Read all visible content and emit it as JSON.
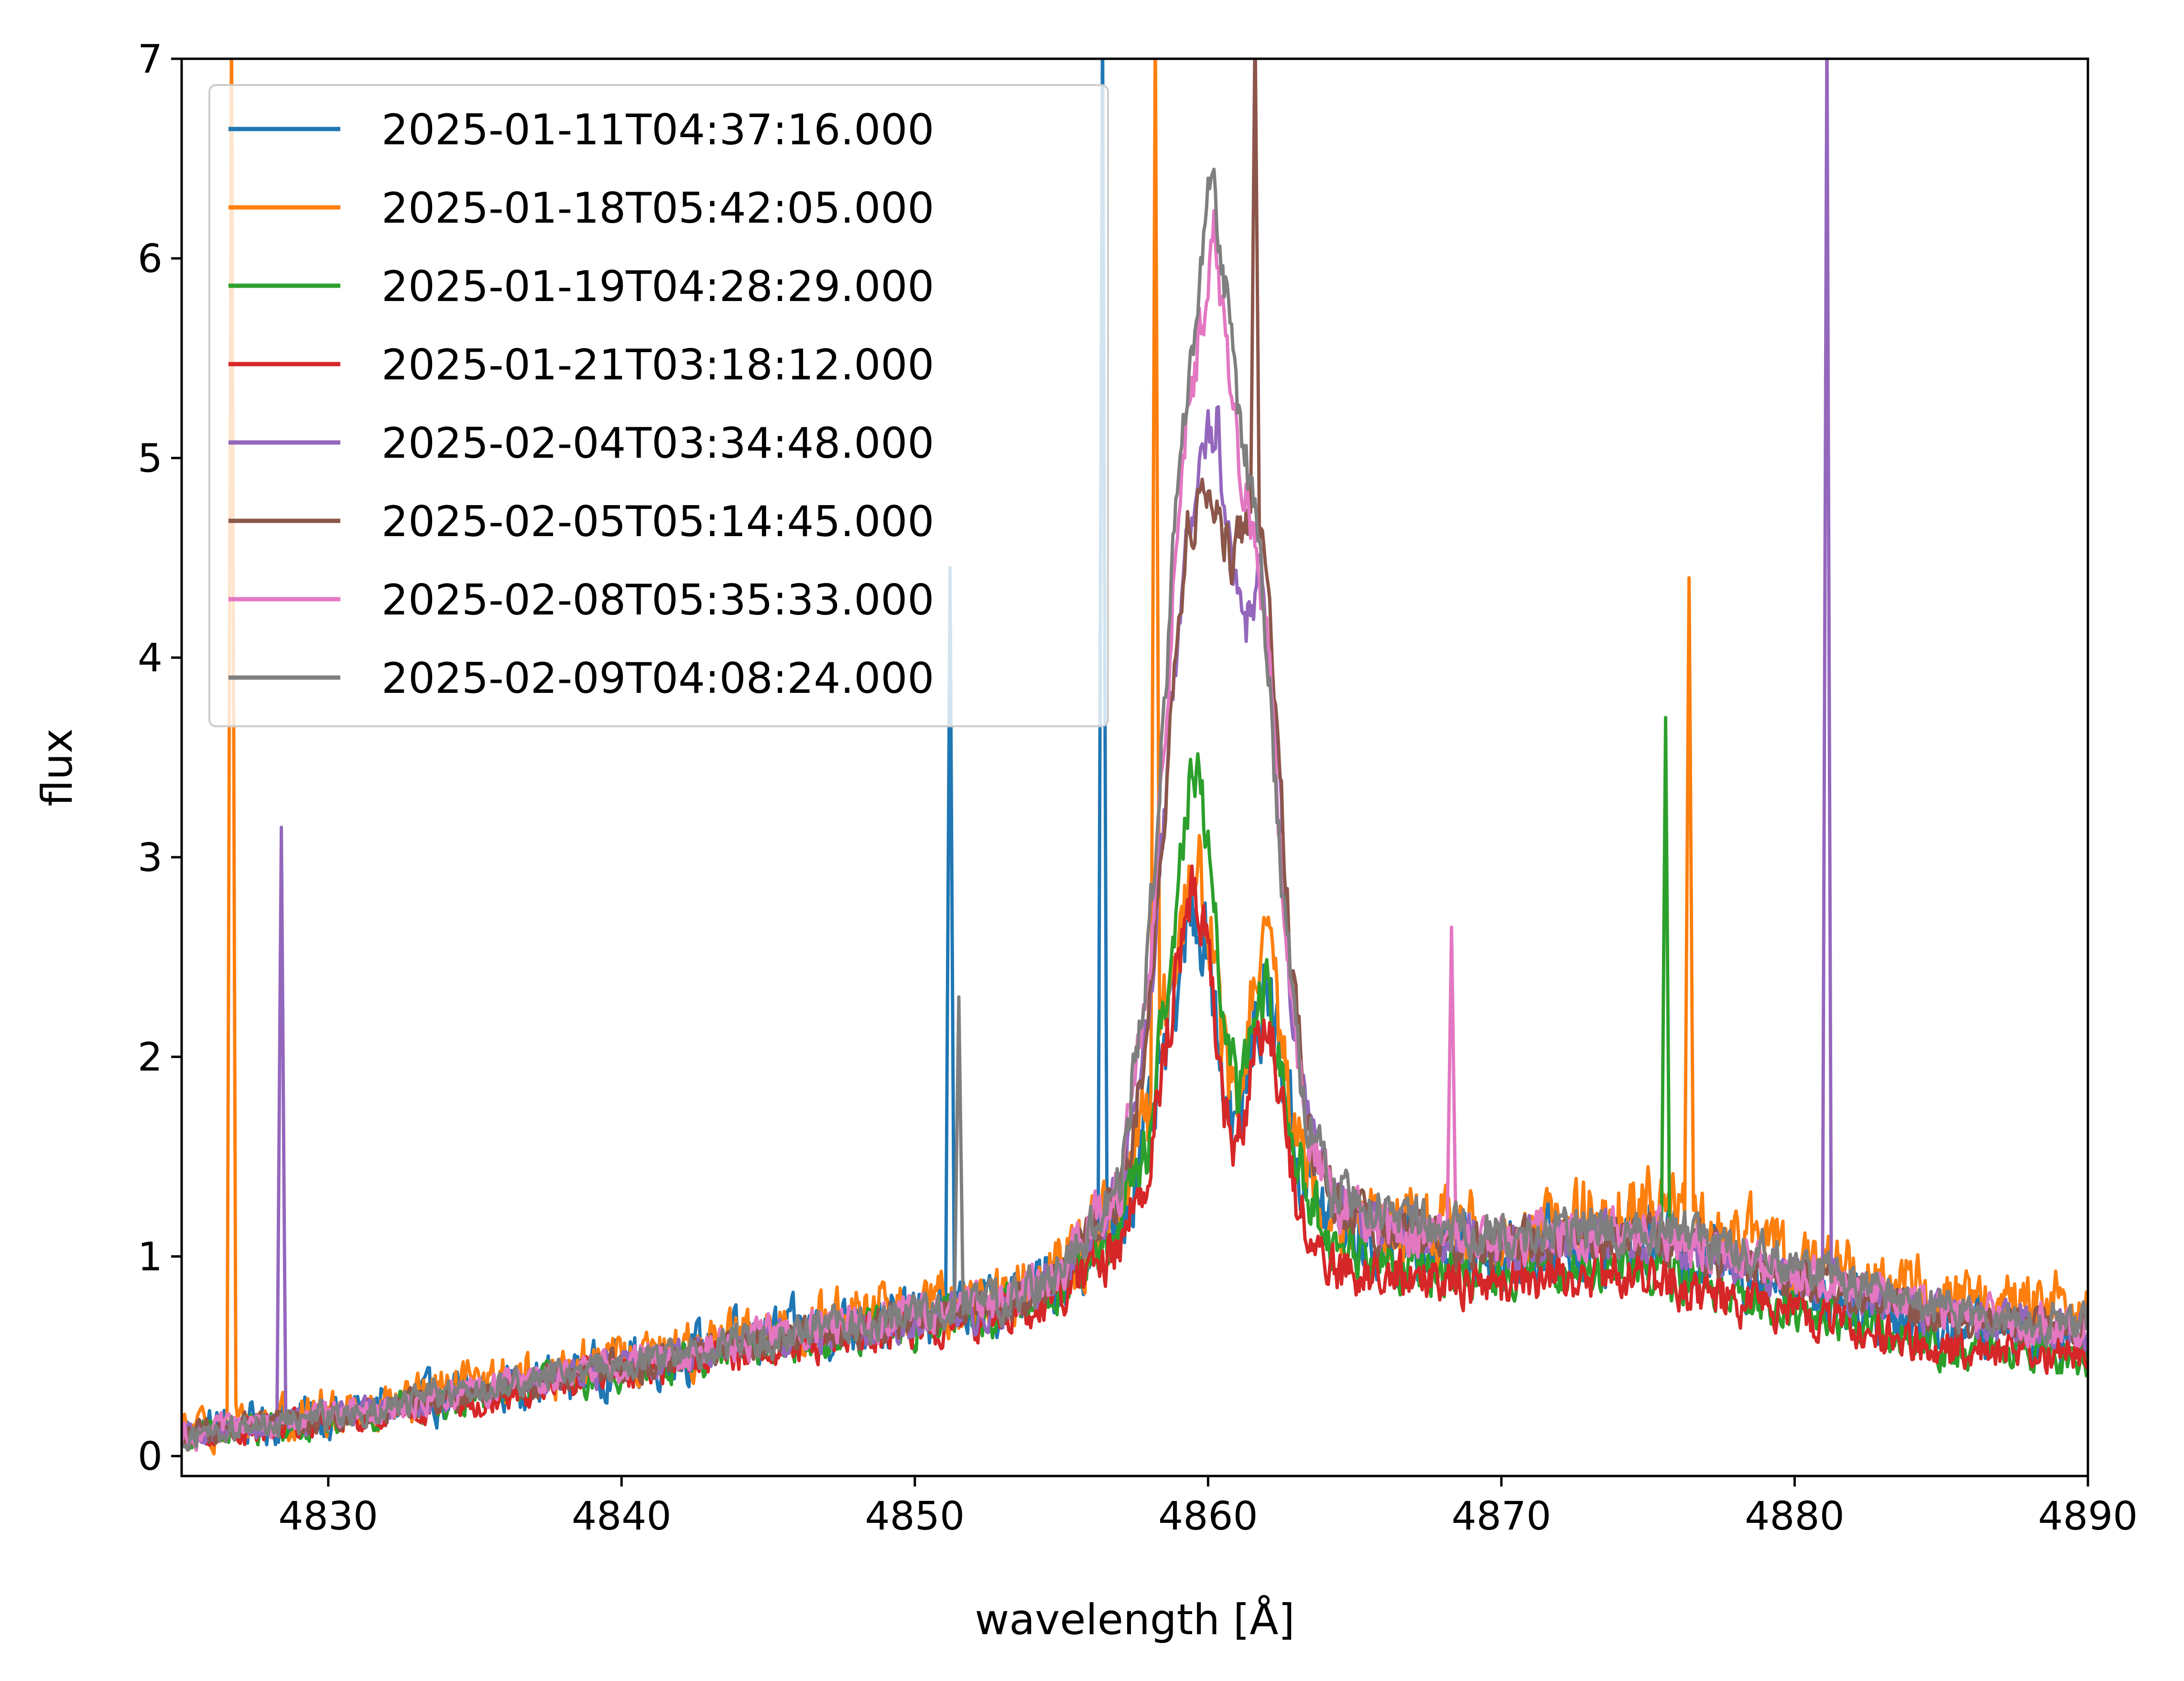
{
  "chart_data": {
    "type": "line",
    "title": "",
    "xlabel": "wavelength [Å]",
    "ylabel": "flux",
    "xlim": [
      4825,
      4890
    ],
    "ylim": [
      -0.1,
      7
    ],
    "xticks": [
      4830,
      4840,
      4850,
      4860,
      4870,
      4880,
      4890
    ],
    "yticks": [
      0,
      1,
      2,
      3,
      4,
      5,
      6,
      7
    ],
    "grid": false,
    "legend_position": "upper left",
    "series": [
      {
        "name": "2025-01-11T04:37:16.000",
        "color": "#1f77b4",
        "noise": 0.28,
        "profile": [
          [
            4825,
            0.12
          ],
          [
            4830,
            0.2
          ],
          [
            4835,
            0.32
          ],
          [
            4840,
            0.45
          ],
          [
            4845,
            0.6
          ],
          [
            4850,
            0.7
          ],
          [
            4853,
            0.75
          ],
          [
            4855,
            0.9
          ],
          [
            4857,
            1.2
          ],
          [
            4858,
            1.6
          ],
          [
            4859,
            2.4
          ],
          [
            4859.5,
            2.75
          ],
          [
            4860,
            2.6
          ],
          [
            4860.5,
            1.9
          ],
          [
            4861,
            1.6
          ],
          [
            4861.5,
            2.1
          ],
          [
            4862,
            2.35
          ],
          [
            4862.5,
            2.0
          ],
          [
            4863,
            1.5
          ],
          [
            4864,
            1.2
          ],
          [
            4866,
            1.05
          ],
          [
            4870,
            1.0
          ],
          [
            4875,
            1.1
          ],
          [
            4880,
            0.85
          ],
          [
            4885,
            0.65
          ],
          [
            4890,
            0.6
          ]
        ],
        "spikes": [
          [
            4851.2,
            4.45
          ],
          [
            4856.4,
            7.2
          ]
        ]
      },
      {
        "name": "2025-01-18T05:42:05.000",
        "color": "#ff7f0e",
        "noise": 0.28,
        "profile": [
          [
            4825,
            0.12
          ],
          [
            4830,
            0.22
          ],
          [
            4835,
            0.35
          ],
          [
            4840,
            0.48
          ],
          [
            4845,
            0.62
          ],
          [
            4850,
            0.74
          ],
          [
            4853,
            0.8
          ],
          [
            4855,
            0.95
          ],
          [
            4857,
            1.25
          ],
          [
            4858,
            1.7
          ],
          [
            4859,
            2.6
          ],
          [
            4859.5,
            3.0
          ],
          [
            4860,
            2.8
          ],
          [
            4860.5,
            2.0
          ],
          [
            4861,
            1.7
          ],
          [
            4861.5,
            2.3
          ],
          [
            4862,
            2.5
          ],
          [
            4862.5,
            2.1
          ],
          [
            4863,
            1.6
          ],
          [
            4864,
            1.3
          ],
          [
            4866,
            1.15
          ],
          [
            4870,
            1.1
          ],
          [
            4875,
            1.25
          ],
          [
            4880,
            1.0
          ],
          [
            4885,
            0.8
          ],
          [
            4890,
            0.75
          ]
        ],
        "spikes": [
          [
            4826.7,
            7.2
          ],
          [
            4858.2,
            7.2
          ],
          [
            4876.4,
            4.4
          ]
        ]
      },
      {
        "name": "2025-01-19T04:28:29.000",
        "color": "#2ca02c",
        "noise": 0.2,
        "profile": [
          [
            4825,
            0.1
          ],
          [
            4830,
            0.18
          ],
          [
            4835,
            0.3
          ],
          [
            4840,
            0.42
          ],
          [
            4845,
            0.56
          ],
          [
            4850,
            0.66
          ],
          [
            4853,
            0.72
          ],
          [
            4855,
            0.85
          ],
          [
            4857,
            1.15
          ],
          [
            4858,
            1.6
          ],
          [
            4859,
            2.9
          ],
          [
            4859.5,
            3.55
          ],
          [
            4860,
            3.1
          ],
          [
            4860.5,
            2.2
          ],
          [
            4861,
            1.8
          ],
          [
            4861.5,
            2.2
          ],
          [
            4862,
            2.3
          ],
          [
            4862.5,
            2.0
          ],
          [
            4863,
            1.5
          ],
          [
            4864,
            1.1
          ],
          [
            4866,
            0.95
          ],
          [
            4870,
            0.92
          ],
          [
            4875,
            0.95
          ],
          [
            4880,
            0.75
          ],
          [
            4885,
            0.55
          ],
          [
            4890,
            0.5
          ]
        ],
        "spikes": [
          [
            4875.6,
            3.7
          ]
        ]
      },
      {
        "name": "2025-01-21T03:18:12.000",
        "color": "#d62728",
        "noise": 0.2,
        "profile": [
          [
            4825,
            0.1
          ],
          [
            4830,
            0.18
          ],
          [
            4835,
            0.3
          ],
          [
            4840,
            0.42
          ],
          [
            4845,
            0.55
          ],
          [
            4850,
            0.65
          ],
          [
            4853,
            0.7
          ],
          [
            4855,
            0.8
          ],
          [
            4857,
            1.05
          ],
          [
            4858,
            1.5
          ],
          [
            4859,
            2.5
          ],
          [
            4859.5,
            2.9
          ],
          [
            4860,
            2.6
          ],
          [
            4860.5,
            1.8
          ],
          [
            4861,
            1.5
          ],
          [
            4861.5,
            2.0
          ],
          [
            4862,
            2.2
          ],
          [
            4862.5,
            1.8
          ],
          [
            4863,
            1.3
          ],
          [
            4864,
            0.95
          ],
          [
            4866,
            0.9
          ],
          [
            4870,
            0.88
          ],
          [
            4875,
            0.9
          ],
          [
            4880,
            0.7
          ],
          [
            4885,
            0.55
          ],
          [
            4890,
            0.5
          ]
        ],
        "spikes": []
      },
      {
        "name": "2025-02-04T03:34:48.000",
        "color": "#9467bd",
        "noise": 0.18,
        "profile": [
          [
            4825,
            0.1
          ],
          [
            4830,
            0.2
          ],
          [
            4835,
            0.32
          ],
          [
            4840,
            0.45
          ],
          [
            4845,
            0.58
          ],
          [
            4850,
            0.68
          ],
          [
            4853,
            0.75
          ],
          [
            4855,
            0.9
          ],
          [
            4857,
            1.3
          ],
          [
            4858,
            2.2
          ],
          [
            4858.8,
            3.8
          ],
          [
            4859.3,
            4.7
          ],
          [
            4859.8,
            5.0
          ],
          [
            4860.3,
            5.2
          ],
          [
            4860.8,
            4.4
          ],
          [
            4861.3,
            4.2
          ],
          [
            4861.8,
            4.4
          ],
          [
            4862.3,
            3.6
          ],
          [
            4862.8,
            2.4
          ],
          [
            4863.5,
            1.6
          ],
          [
            4864.5,
            1.25
          ],
          [
            4866,
            1.12
          ],
          [
            4870,
            1.05
          ],
          [
            4875,
            1.1
          ],
          [
            4880,
            0.9
          ],
          [
            4885,
            0.7
          ],
          [
            4890,
            0.62
          ]
        ],
        "spikes": [
          [
            4828.4,
            3.15
          ],
          [
            4881.1,
            7.2
          ]
        ]
      },
      {
        "name": "2025-02-05T05:14:45.000",
        "color": "#8c564b",
        "noise": 0.18,
        "profile": [
          [
            4825,
            0.1
          ],
          [
            4830,
            0.2
          ],
          [
            4835,
            0.32
          ],
          [
            4840,
            0.45
          ],
          [
            4845,
            0.58
          ],
          [
            4850,
            0.68
          ],
          [
            4853,
            0.75
          ],
          [
            4855,
            0.9
          ],
          [
            4857,
            1.3
          ],
          [
            4858,
            2.2
          ],
          [
            4858.8,
            3.9
          ],
          [
            4859.3,
            4.6
          ],
          [
            4859.8,
            4.9
          ],
          [
            4860.3,
            4.8
          ],
          [
            4860.8,
            4.5
          ],
          [
            4861.3,
            4.6
          ],
          [
            4861.8,
            4.7
          ],
          [
            4862.3,
            3.8
          ],
          [
            4862.8,
            2.5
          ],
          [
            4863.5,
            1.6
          ],
          [
            4864.5,
            1.25
          ],
          [
            4866,
            1.12
          ],
          [
            4870,
            1.05
          ],
          [
            4875,
            1.1
          ],
          [
            4880,
            0.9
          ],
          [
            4885,
            0.7
          ],
          [
            4890,
            0.62
          ]
        ],
        "spikes": [
          [
            4861.6,
            7.2
          ]
        ]
      },
      {
        "name": "2025-02-08T05:35:33.000",
        "color": "#e377c2",
        "noise": 0.18,
        "profile": [
          [
            4825,
            0.1
          ],
          [
            4830,
            0.2
          ],
          [
            4835,
            0.33
          ],
          [
            4840,
            0.46
          ],
          [
            4845,
            0.6
          ],
          [
            4850,
            0.7
          ],
          [
            4853,
            0.77
          ],
          [
            4855,
            0.92
          ],
          [
            4857,
            1.35
          ],
          [
            4858,
            2.4
          ],
          [
            4858.8,
            4.3
          ],
          [
            4859.3,
            5.2
          ],
          [
            4859.8,
            5.7
          ],
          [
            4860.2,
            6.1
          ],
          [
            4860.6,
            5.6
          ],
          [
            4861.1,
            4.9
          ],
          [
            4861.6,
            4.6
          ],
          [
            4862.1,
            3.9
          ],
          [
            4862.6,
            2.7
          ],
          [
            4863.3,
            1.7
          ],
          [
            4864.3,
            1.3
          ],
          [
            4866,
            1.15
          ],
          [
            4870,
            1.08
          ],
          [
            4875,
            1.12
          ],
          [
            4880,
            0.92
          ],
          [
            4885,
            0.72
          ],
          [
            4890,
            0.64
          ]
        ],
        "spikes": [
          [
            4868.3,
            2.65
          ]
        ]
      },
      {
        "name": "2025-02-09T04:08:24.000",
        "color": "#7f7f7f",
        "noise": 0.18,
        "profile": [
          [
            4825,
            0.1
          ],
          [
            4830,
            0.2
          ],
          [
            4835,
            0.33
          ],
          [
            4840,
            0.46
          ],
          [
            4845,
            0.6
          ],
          [
            4850,
            0.7
          ],
          [
            4853,
            0.77
          ],
          [
            4855,
            0.92
          ],
          [
            4857,
            1.4
          ],
          [
            4858,
            2.6
          ],
          [
            4858.8,
            4.5
          ],
          [
            4859.3,
            5.4
          ],
          [
            4859.8,
            6.0
          ],
          [
            4860.1,
            6.45
          ],
          [
            4860.5,
            6.0
          ],
          [
            4861,
            5.2
          ],
          [
            4861.5,
            4.8
          ],
          [
            4862,
            4.1
          ],
          [
            4862.5,
            2.9
          ],
          [
            4863.2,
            1.8
          ],
          [
            4864.2,
            1.35
          ],
          [
            4866,
            1.2
          ],
          [
            4870,
            1.1
          ],
          [
            4875,
            1.15
          ],
          [
            4880,
            0.95
          ],
          [
            4885,
            0.75
          ],
          [
            4890,
            0.66
          ]
        ],
        "spikes": [
          [
            4851.5,
            2.3
          ]
        ]
      }
    ]
  }
}
